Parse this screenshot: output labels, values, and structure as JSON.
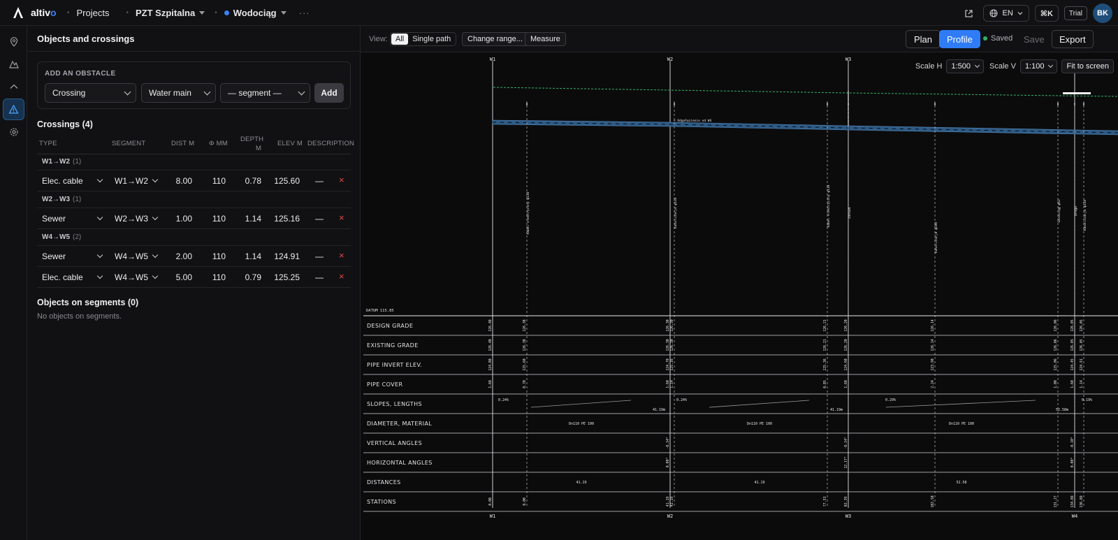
{
  "topbar": {
    "brand": "altiv",
    "brand_accent": "o",
    "projects": "Projects",
    "project": "PZT Szpitalna",
    "network": "Wodociąg",
    "more": "···",
    "lang": "EN",
    "shortcut": "⌘K",
    "trial": "Trial",
    "avatar": "BK"
  },
  "panel": {
    "title": "Objects and crossings",
    "add_obstacle": {
      "title": "ADD AN OBSTACLE",
      "type": "Crossing",
      "kind": "Water main",
      "segment": "— segment —",
      "add": "Add"
    },
    "crossings_title": "Crossings (4)",
    "columns": {
      "type": "TYPE",
      "segment": "SEGMENT",
      "dist": "DIST M",
      "phi": "Φ MM",
      "depth1": "DEPTH",
      "depth2": "M",
      "elev": "ELEV M",
      "desc": "DESCRIPTION"
    },
    "groups": [
      {
        "label": "W1→W2",
        "count": "(1)"
      },
      {
        "label": "W2→W3",
        "count": "(1)"
      },
      {
        "label": "W4→W5",
        "count": "(2)"
      }
    ],
    "rows": [
      {
        "type": "Elec. cable",
        "segment": "W1→W2",
        "dist": "8.00",
        "phi": "110",
        "depth": "0.78",
        "elev": "125.60",
        "desc": "—",
        "del": "×"
      },
      {
        "type": "Sewer",
        "segment": "W2→W3",
        "dist": "1.00",
        "phi": "110",
        "depth": "1.14",
        "elev": "125.16",
        "desc": "—",
        "del": "×"
      },
      {
        "type": "Sewer",
        "segment": "W4→W5",
        "dist": "2.00",
        "phi": "110",
        "depth": "1.14",
        "elev": "124.91",
        "desc": "—",
        "del": "×"
      },
      {
        "type": "Elec. cable",
        "segment": "W4→W5",
        "dist": "5.00",
        "phi": "110",
        "depth": "0.79",
        "elev": "125.25",
        "desc": "—",
        "del": "×"
      }
    ],
    "objects_title": "Objects on segments (0)",
    "objects_empty": "No objects on segments."
  },
  "toolbar": {
    "view_label": "View:",
    "view_all": "All",
    "view_single": "Single path",
    "change_range": "Change range...",
    "measure": "Measure",
    "plan": "Plan",
    "profile": "Profile",
    "saved": "Saved",
    "save": "Save",
    "export": "Export"
  },
  "scale": {
    "h_label": "Scale H",
    "h_value": "1:500",
    "v_label": "Scale V",
    "v_value": "1:100",
    "fit": "Fit to screen"
  },
  "profile": {
    "datum": "DATUM 115.85",
    "wells_top": [
      "W1",
      "W2",
      "W3"
    ],
    "wells_bottom": [
      "W1",
      "W2",
      "W3",
      "W4"
    ],
    "crossing_labels": [
      "Kabel elektryczny φ110",
      "Kanalizacja φ110",
      "Kabel elektryczny φ110",
      "Zasuwa",
      "Kanalizacja φ200",
      "Gazociąg φ63",
      "Droga",
      "Kanalizacja φ110"
    ],
    "annotation": "Odgałęzienie od W4",
    "rows": [
      "DESIGN GRADE",
      "EXISTING GRADE",
      "PIPE INVERT ELEV.",
      "PIPE COVER",
      "SLOPES, LENGTHS",
      "DIAMETER, MATERIAL",
      "VERTICAL ANGLES",
      "HORIZONTAL ANGLES",
      "DISTANCES",
      "STATIONS"
    ],
    "design_grade": [
      "126.40",
      "126.38",
      "126.30",
      "126.30",
      "126.21",
      "126.20",
      "126.14",
      "126.06",
      "126.05",
      "126.05"
    ],
    "existing_grade": [
      "126.40",
      "126.38",
      "126.30",
      "126.30",
      "126.21",
      "126.20",
      "126.14",
      "126.06",
      "126.05",
      "126.05"
    ],
    "invert": [
      "124.80",
      "125.60",
      "124.70",
      "125.16",
      "125.36",
      "124.60",
      "123.90",
      "125.06",
      "124.45",
      "124.91"
    ],
    "cover": [
      "1.60",
      "0.78",
      "1.60",
      "1.14",
      "0.85",
      "1.60",
      "2.24",
      "1.00",
      "1.60",
      "1.14"
    ],
    "slopes": [
      "0.24%",
      "41.19m",
      "0.24%",
      "41.19m",
      "0.29%",
      "52.58m",
      "0.19%"
    ],
    "diameter": [
      "Dn110 PE 100",
      "Dn110 PE 100",
      "Dn110 PE 100"
    ],
    "vertical_angles": [
      "-0.14°",
      "-0.14°",
      "-0.10°"
    ],
    "horizontal_angles": [
      "0.00°",
      "12.17°",
      "0.00°"
    ],
    "distances": [
      "41.19",
      "41.19",
      "52.58"
    ],
    "stations": [
      "0.00",
      "8.00",
      "41.19",
      "42.19",
      "77.53",
      "82.39",
      "102.58",
      "131.27",
      "134.89",
      "136.89"
    ]
  }
}
